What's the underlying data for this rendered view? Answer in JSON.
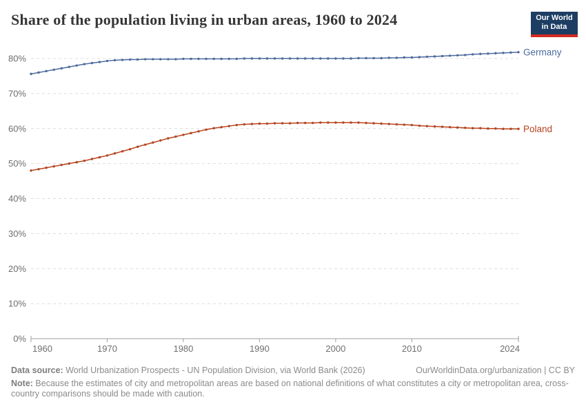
{
  "header": {
    "title": "Share of the population living in urban areas, 1960 to 2024",
    "logo_line1": "Our World",
    "logo_line2": "in Data"
  },
  "chart_data": {
    "type": "line",
    "title": "Share of the population living in urban areas, 1960 to 2024",
    "xlabel": "",
    "ylabel": "",
    "xlim": [
      1960,
      2024
    ],
    "ylim": [
      0,
      82
    ],
    "x_ticks": [
      1960,
      1970,
      1980,
      1990,
      2000,
      2010,
      2024
    ],
    "y_ticks": [
      0,
      10,
      20,
      30,
      40,
      50,
      60,
      70,
      80
    ],
    "y_tick_suffix": "%",
    "grid": "horizontal-dashed",
    "markers": true,
    "legend_position": "end-of-line",
    "years": [
      1960,
      1961,
      1962,
      1963,
      1964,
      1965,
      1966,
      1967,
      1968,
      1969,
      1970,
      1971,
      1972,
      1973,
      1974,
      1975,
      1976,
      1977,
      1978,
      1979,
      1980,
      1981,
      1982,
      1983,
      1984,
      1985,
      1986,
      1987,
      1988,
      1989,
      1990,
      1991,
      1992,
      1993,
      1994,
      1995,
      1996,
      1997,
      1998,
      1999,
      2000,
      2001,
      2002,
      2003,
      2004,
      2005,
      2006,
      2007,
      2008,
      2009,
      2010,
      2011,
      2012,
      2013,
      2014,
      2015,
      2016,
      2017,
      2018,
      2019,
      2020,
      2021,
      2022,
      2023,
      2024
    ],
    "series": [
      {
        "name": "Germany",
        "color": "#4C6A9C",
        "values": [
          75.6,
          76.0,
          76.4,
          76.8,
          77.2,
          77.6,
          78.0,
          78.4,
          78.7,
          79.0,
          79.3,
          79.5,
          79.6,
          79.7,
          79.7,
          79.8,
          79.8,
          79.8,
          79.8,
          79.8,
          79.9,
          79.9,
          79.9,
          79.9,
          79.9,
          79.9,
          79.9,
          79.9,
          80.0,
          80.0,
          80.0,
          80.0,
          80.0,
          80.0,
          80.0,
          80.0,
          80.0,
          80.0,
          80.0,
          80.0,
          80.0,
          80.0,
          80.0,
          80.1,
          80.1,
          80.1,
          80.1,
          80.2,
          80.2,
          80.3,
          80.3,
          80.4,
          80.5,
          80.6,
          80.7,
          80.8,
          80.9,
          81.0,
          81.2,
          81.3,
          81.4,
          81.5,
          81.6,
          81.7,
          81.8
        ]
      },
      {
        "name": "Poland",
        "color": "#B5431D",
        "values": [
          48.0,
          48.4,
          48.8,
          49.2,
          49.6,
          50.0,
          50.4,
          50.8,
          51.3,
          51.8,
          52.3,
          52.9,
          53.5,
          54.1,
          54.8,
          55.4,
          56.0,
          56.6,
          57.2,
          57.7,
          58.2,
          58.7,
          59.2,
          59.7,
          60.1,
          60.4,
          60.7,
          61.0,
          61.2,
          61.3,
          61.4,
          61.4,
          61.5,
          61.5,
          61.5,
          61.6,
          61.6,
          61.6,
          61.7,
          61.7,
          61.7,
          61.7,
          61.7,
          61.7,
          61.6,
          61.5,
          61.4,
          61.3,
          61.2,
          61.1,
          61.0,
          60.8,
          60.7,
          60.6,
          60.5,
          60.4,
          60.3,
          60.2,
          60.1,
          60.1,
          60.0,
          60.0,
          59.9,
          59.9,
          59.9
        ]
      }
    ],
    "colors": {
      "grid": "#dcdcdc",
      "axis": "#9e9e9e",
      "tick_text": "#6e6e6e",
      "logo_bg": "#1d3d63",
      "logo_bar": "#d12b1e"
    }
  },
  "footer": {
    "source_label": "Data source:",
    "source_text": " World Urbanization Prospects - UN Population Division, via World Bank (2026)",
    "link": "OurWorldinData.org/urbanization | CC BY",
    "note_label": "Note:",
    "note_text": " Because the estimates of city and metropolitan areas are based on national definitions of what constitutes a city or metropolitan area, cross-country comparisons should be made with caution."
  }
}
